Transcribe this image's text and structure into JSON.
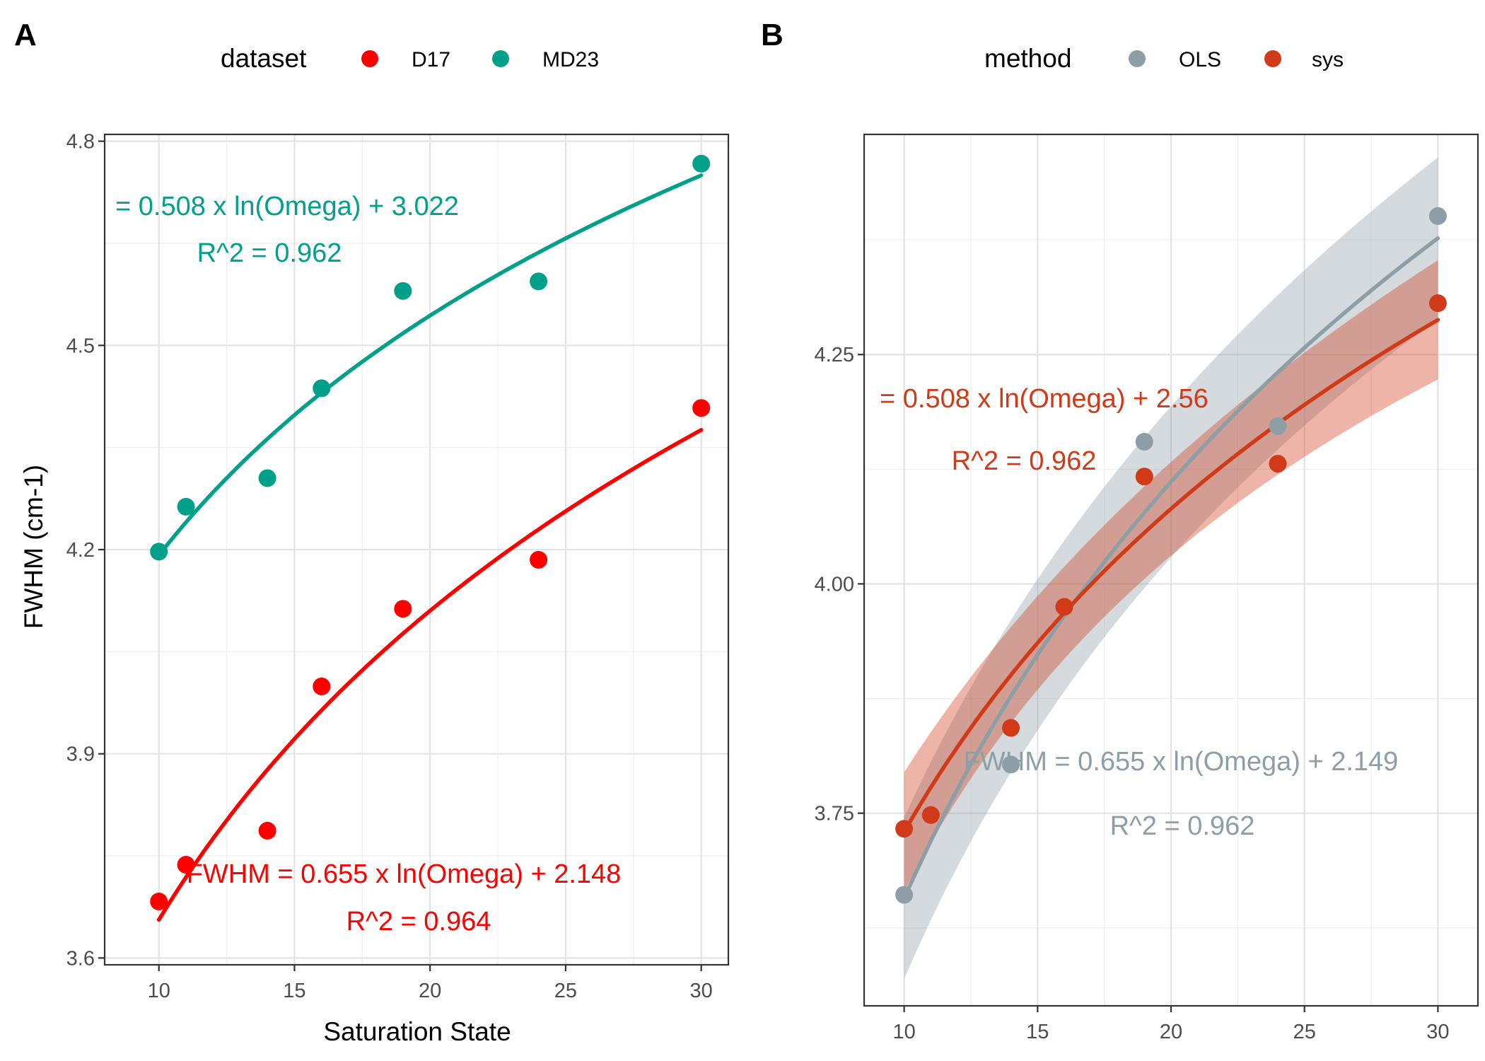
{
  "chart_data": [
    {
      "panel": "A",
      "type": "scatter",
      "xlabel": "Saturation State",
      "ylabel": "FWHM (cm-1)",
      "xlim": [
        8,
        31
      ],
      "ylim": [
        3.59,
        4.81
      ],
      "xticks": [
        10,
        15,
        20,
        25,
        30
      ],
      "yticks": [
        3.6,
        3.9,
        4.2,
        4.5,
        4.8
      ],
      "ytick_labels": [
        "3.6",
        "3.9",
        "4.2",
        "4.5",
        "4.8"
      ],
      "grid": true,
      "legend": {
        "title": "dataset",
        "position": "top"
      },
      "series": [
        {
          "name": "D17",
          "color": "#ff0000",
          "x": [
            10,
            11,
            14,
            16,
            19,
            24,
            30
          ],
          "y": [
            3.683,
            3.737,
            3.787,
            3.999,
            4.113,
            4.185,
            4.408
          ],
          "fit": {
            "a": 0.655,
            "b": 2.148
          },
          "annotation": [
            "FWHM = 0.655 x ln(Omega) + 2.148",
            "R^2 = 0.964"
          ]
        },
        {
          "name": "MD23",
          "color": "#00a08a",
          "x": [
            10,
            11,
            14,
            16,
            19,
            24,
            30
          ],
          "y": [
            4.197,
            4.263,
            4.305,
            4.437,
            4.58,
            4.594,
            4.767
          ],
          "fit": {
            "a": 0.508,
            "b": 3.022
          },
          "annotation": [
            "= 0.508 x ln(Omega) + 3.022",
            "R^2 = 0.962"
          ]
        }
      ]
    },
    {
      "panel": "B",
      "type": "scatter",
      "xlabel": "",
      "ylabel": "",
      "xlim": [
        8.5,
        31.5
      ],
      "ylim": [
        3.54,
        4.49
      ],
      "xticks": [
        10,
        15,
        20,
        25,
        30
      ],
      "yticks": [
        3.75,
        4.0,
        4.25
      ],
      "ytick_labels": [
        "3.75",
        "4.00",
        "4.25"
      ],
      "grid": true,
      "legend": {
        "title": "method",
        "position": "top"
      },
      "series": [
        {
          "name": "OLS",
          "color": "#8d9ea7",
          "x": [
            10,
            11,
            14,
            16,
            19,
            24,
            30
          ],
          "y": [
            3.661,
            3.748,
            3.803,
            3.975,
            4.155,
            4.172,
            4.401
          ],
          "fit": {
            "a": 0.655,
            "b": 2.149
          },
          "band_halfwidth": [
            0.082,
            0.088
          ],
          "annotation": [
            "FWHM = 0.655 x ln(Omega) + 2.149",
            "R^2 = 0.962"
          ]
        },
        {
          "name": "sys",
          "color": "#d03a18",
          "x": [
            10,
            11,
            14,
            16,
            19,
            24,
            30
          ],
          "y": [
            3.733,
            3.748,
            3.843,
            3.975,
            4.117,
            4.131,
            4.306
          ],
          "fit": {
            "a": 0.508,
            "b": 2.56
          },
          "band_halfwidth": [
            0.05,
            0.065
          ],
          "annotation": [
            "= 0.508 x ln(Omega) + 2.56",
            "R^2 = 0.962"
          ]
        }
      ]
    }
  ]
}
